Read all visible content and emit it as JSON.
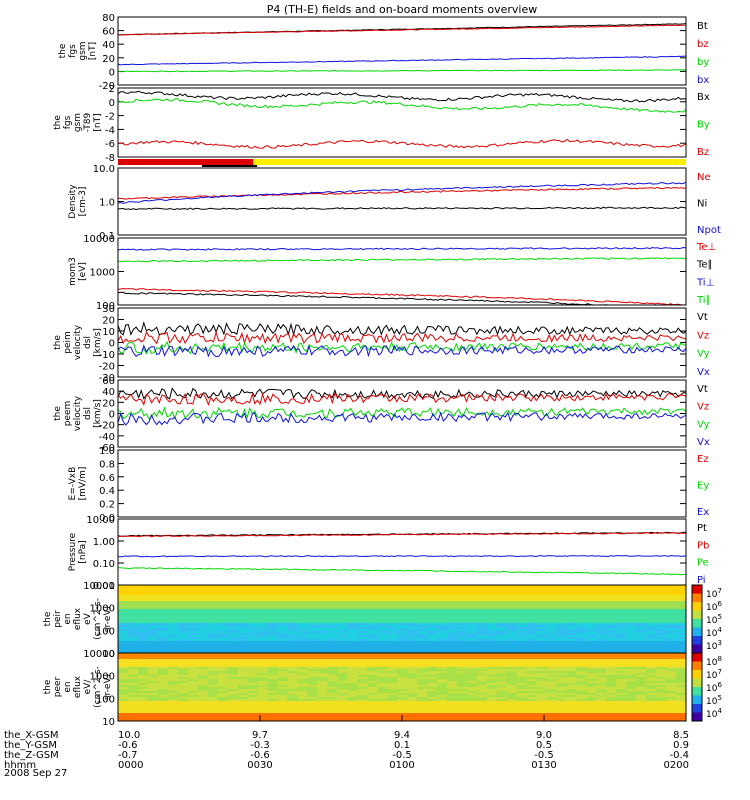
{
  "title": "P4 (TH-E) fields and on-board moments overview",
  "date": "2008 Sep 27",
  "colors": {
    "black": "#000000",
    "red": "#dd0000",
    "blue": "#1010e0",
    "green": "#00d800",
    "yellow": "#ffee00"
  },
  "chart_data": [
    {
      "type": "line",
      "ylabel": [
        "the",
        "fgs",
        "gsm",
        "[nT]"
      ],
      "yticks": [
        "80",
        "60",
        "40",
        "20",
        "0",
        "-20"
      ],
      "series": [
        {
          "name": "Bt",
          "color": "#000000",
          "start": 54,
          "end": 70
        },
        {
          "name": "bz",
          "color": "#dd0000",
          "start": 54,
          "end": 68
        },
        {
          "name": "by",
          "color": "#00d800",
          "start": 0,
          "end": 2
        },
        {
          "name": "bx",
          "color": "#1010e0",
          "start": 10,
          "end": 22
        }
      ],
      "legend_colors": [
        "#000000",
        "#dd0000",
        "#00d800",
        "#1010e0"
      ]
    },
    {
      "type": "line",
      "ylabel": [
        "the",
        "fgs",
        "gsm",
        "-T89",
        "[nT]"
      ],
      "yticks": [
        "2",
        "0",
        "-2",
        "-4",
        "-6",
        "-8"
      ],
      "series": [
        {
          "name": "Bx",
          "color": "#000000",
          "start": 1,
          "end": 0.5
        },
        {
          "name": "By",
          "color": "#00d800",
          "start": 0,
          "end": -1
        },
        {
          "name": "Bz",
          "color": "#dd0000",
          "start": -6.2,
          "end": -6
        }
      ]
    },
    {
      "type": "line",
      "ylabel": [
        "Density",
        "[cm-3]"
      ],
      "yticks": [
        "10.0",
        "1.0",
        "0.1"
      ],
      "yscale": "log",
      "series": [
        {
          "name": "Ne",
          "color": "#dd0000",
          "start": 1.2,
          "end": 2.6
        },
        {
          "name": "Ni",
          "color": "#000000",
          "start": 0.6,
          "end": 0.65
        },
        {
          "name": "Npot",
          "color": "#1010e0",
          "start": 0.9,
          "end": 3.6
        }
      ]
    },
    {
      "type": "line",
      "ylabel": [
        "mom3",
        "[eV]"
      ],
      "yticks": [
        "10000",
        "1000",
        "100"
      ],
      "yscale": "log",
      "series": [
        {
          "name": "Te⊥",
          "color": "#dd0000",
          "start": 300,
          "end": 100
        },
        {
          "name": "Te∥",
          "color": "#000000",
          "start": 230,
          "end": 80
        },
        {
          "name": "Ti⊥",
          "color": "#1010e0",
          "start": 4500,
          "end": 5000
        },
        {
          "name": "Ti∥",
          "color": "#00d800",
          "start": 2000,
          "end": 2500
        }
      ]
    },
    {
      "type": "line",
      "ylabel": [
        "the",
        "peim",
        "velocity",
        "dsl",
        "[km/s]"
      ],
      "yticks": [
        "30",
        "20",
        "10",
        "0",
        "-10",
        "-20",
        "-30"
      ],
      "series": [
        {
          "name": "Vt",
          "color": "#000000",
          "start": 12,
          "end": 10
        },
        {
          "name": "Vz",
          "color": "#dd0000",
          "start": 4,
          "end": 4
        },
        {
          "name": "Vy",
          "color": "#00d800",
          "start": -5,
          "end": -3
        },
        {
          "name": "Vx",
          "color": "#1010e0",
          "start": -8,
          "end": -6
        }
      ]
    },
    {
      "type": "line",
      "ylabel": [
        "the",
        "peem",
        "velocity",
        "dsl",
        "[km/s]"
      ],
      "yticks": [
        "60",
        "40",
        "20",
        "0",
        "-20",
        "-40",
        "-60"
      ],
      "series": [
        {
          "name": "Vt",
          "color": "#000000",
          "start": 35,
          "end": 35
        },
        {
          "name": "Vz",
          "color": "#dd0000",
          "start": 25,
          "end": 30
        },
        {
          "name": "Vy",
          "color": "#00d800",
          "start": 0,
          "end": 4
        },
        {
          "name": "Vx",
          "color": "#1010e0",
          "start": -10,
          "end": -4
        }
      ]
    },
    {
      "type": "line",
      "ylabel": [
        "E=-VxB",
        "[mV/m]"
      ],
      "yticks": [
        "1.0",
        "0.8",
        "0.6",
        "0.4",
        "0.2",
        "0.0"
      ],
      "series": [
        {
          "name": "Ez",
          "color": "#dd0000",
          "start": null,
          "end": null
        },
        {
          "name": "Ey",
          "color": "#00d800",
          "start": null,
          "end": null
        },
        {
          "name": "Ex",
          "color": "#1010e0",
          "start": null,
          "end": null
        }
      ]
    },
    {
      "type": "line",
      "ylabel": [
        "Pressure",
        "[nPa]"
      ],
      "yticks": [
        "10.00",
        "1.00",
        "0.10",
        "0.01"
      ],
      "yscale": "log",
      "series": [
        {
          "name": "Pt",
          "color": "#000000",
          "start": 1.7,
          "end": 2.4
        },
        {
          "name": "Pb",
          "color": "#dd0000",
          "start": 1.6,
          "end": 2.3
        },
        {
          "name": "Pe",
          "color": "#00d800",
          "start": 0.06,
          "end": 0.03
        },
        {
          "name": "Pi",
          "color": "#1010e0",
          "start": 0.2,
          "end": 0.21
        }
      ]
    },
    {
      "type": "heatmap",
      "ylabel": [
        "the",
        "peir",
        "en",
        "eflux",
        "eV",
        "(cm^2-s-",
        "sr-eV)"
      ],
      "yticks": [
        "10000",
        "1000",
        "100",
        "10"
      ],
      "colorbar": [
        "10^7",
        "10^6",
        "10^5",
        "10^4",
        "10^3"
      ]
    },
    {
      "type": "heatmap",
      "ylabel": [
        "the",
        "peer",
        "en",
        "eflux",
        "eV/",
        "(cm^2-s-",
        "sr-eV)"
      ],
      "yticks": [
        "10000",
        "1000",
        "100",
        "10"
      ],
      "colorbar": [
        "10^8",
        "10^7",
        "10^6",
        "10^5",
        "10^4"
      ]
    }
  ],
  "xaxis": {
    "rows": [
      {
        "label": "the_X-GSM",
        "values": [
          "10.0",
          "9.7",
          "9.4",
          "9.0",
          "8.5"
        ]
      },
      {
        "label": "the_Y-GSM",
        "values": [
          "-0.6",
          "-0.3",
          "0.1",
          "0.5",
          "0.9"
        ]
      },
      {
        "label": "the_Z-GSM",
        "values": [
          "-0.7",
          "-0.6",
          "-0.5",
          "-0.5",
          "-0.4"
        ]
      },
      {
        "label": "hhmm",
        "values": [
          "0000",
          "0030",
          "0100",
          "0130",
          "0200"
        ]
      }
    ]
  }
}
